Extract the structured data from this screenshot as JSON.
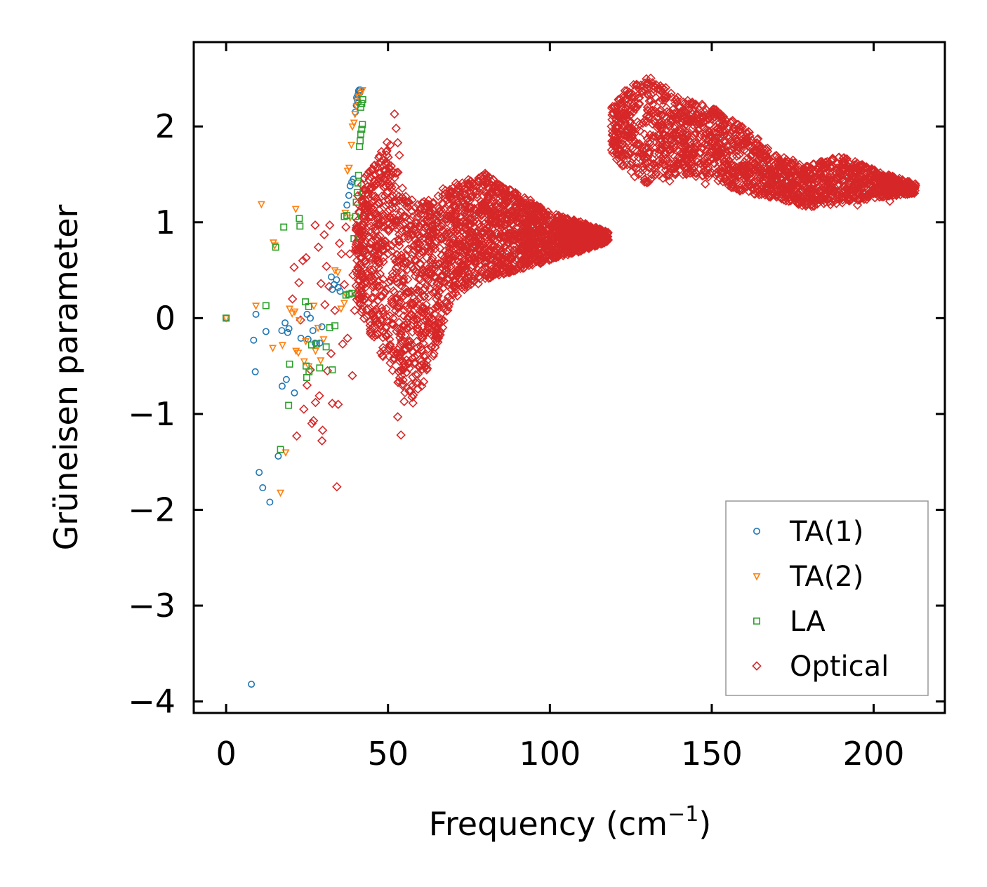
{
  "chart_data": {
    "type": "scatter",
    "title": "",
    "xlabel": "Frequency (cm",
    "xlabel_sup": "−1",
    "xlabel_close": ")",
    "ylabel": "Grüneisen parameter",
    "xlim": [
      -10,
      222
    ],
    "ylim": [
      -4.12,
      2.88
    ],
    "xticks": [
      0,
      50,
      100,
      150,
      200
    ],
    "xtick_labels": [
      "0",
      "50",
      "100",
      "150",
      "200"
    ],
    "yticks": [
      -4,
      -3,
      -2,
      -1,
      0,
      1,
      2
    ],
    "ytick_labels": [
      "−4",
      "−3",
      "−2",
      "−1",
      "0",
      "1",
      "2"
    ],
    "legend_position": "lower-right",
    "series": [
      {
        "name": "TA(1)",
        "marker": "circle",
        "color": "#1f77b4",
        "points": [
          [
            0,
            0
          ],
          [
            7.8,
            -3.82
          ],
          [
            8.5,
            -0.23
          ],
          [
            9.2,
            0.04
          ],
          [
            9.0,
            -0.56
          ],
          [
            10.2,
            -1.61
          ],
          [
            11.3,
            -1.77
          ],
          [
            12.3,
            -0.14
          ],
          [
            13.5,
            -1.92
          ],
          [
            16.1,
            -1.44
          ],
          [
            17.2,
            -0.13
          ],
          [
            17.3,
            -0.71
          ],
          [
            18.2,
            -0.05
          ],
          [
            18.6,
            -0.64
          ],
          [
            19.0,
            -0.15
          ],
          [
            19.4,
            -0.11
          ],
          [
            21.1,
            -0.78
          ],
          [
            23.1,
            -0.21
          ],
          [
            25.0,
            0.04
          ],
          [
            25.3,
            -0.22
          ],
          [
            26.0,
            0.0
          ],
          [
            26.8,
            -0.13
          ],
          [
            27.5,
            -0.26
          ],
          [
            28.9,
            -0.26
          ],
          [
            29.6,
            -0.09
          ],
          [
            32.5,
            0.43
          ],
          [
            32.8,
            0.3
          ],
          [
            33.4,
            0.35
          ],
          [
            34.1,
            0.4
          ],
          [
            34.6,
            0.32
          ],
          [
            35.2,
            0.28
          ],
          [
            37.3,
            1.18
          ],
          [
            37.9,
            1.28
          ],
          [
            38.3,
            1.38
          ],
          [
            38.8,
            1.42
          ],
          [
            39.3,
            1.45
          ],
          [
            39.9,
            2.15
          ],
          [
            40.2,
            2.22
          ],
          [
            40.5,
            2.28
          ],
          [
            40.7,
            2.33
          ],
          [
            40.9,
            2.37
          ],
          [
            41.1,
            2.38
          ],
          [
            41.3,
            2.35
          ],
          [
            41.5,
            2.38
          ],
          [
            40.3,
            2.3
          ],
          [
            40.8,
            2.25
          ]
        ]
      },
      {
        "name": "TA(2)",
        "marker": "triangle-down",
        "color": "#ff7f0e",
        "points": [
          [
            0,
            0
          ],
          [
            9.2,
            0.13
          ],
          [
            10.9,
            1.19
          ],
          [
            14.4,
            -0.31
          ],
          [
            14.6,
            0.79
          ],
          [
            15.0,
            0.76
          ],
          [
            16.8,
            -1.82
          ],
          [
            17.4,
            -0.28
          ],
          [
            18.4,
            -1.4
          ],
          [
            19.6,
            0.1
          ],
          [
            20.4,
            0.05
          ],
          [
            21.2,
            0.07
          ],
          [
            21.6,
            -0.34
          ],
          [
            21.5,
            1.14
          ],
          [
            22.3,
            -0.36
          ],
          [
            22.6,
            -0.02
          ],
          [
            24.1,
            -0.45
          ],
          [
            24.6,
            -0.24
          ],
          [
            25.5,
            -0.5
          ],
          [
            27.1,
            0.13
          ],
          [
            27.6,
            -0.34
          ],
          [
            28.4,
            -0.1
          ],
          [
            29.2,
            -0.44
          ],
          [
            30.1,
            -0.22
          ],
          [
            33.6,
            0.5
          ],
          [
            34.5,
            0.48
          ],
          [
            35.5,
            0.1
          ],
          [
            36.5,
            0.16
          ],
          [
            37.5,
            1.54
          ],
          [
            38.0,
            1.57
          ],
          [
            38.7,
            1.81
          ],
          [
            39.0,
            2.0
          ],
          [
            39.5,
            2.04
          ],
          [
            39.8,
            2.13
          ],
          [
            40.3,
            2.21
          ],
          [
            40.6,
            2.26
          ],
          [
            41.0,
            2.31
          ],
          [
            41.6,
            2.35
          ],
          [
            42.1,
            2.38
          ],
          [
            38.3,
            1.05
          ],
          [
            37.0,
            0.25
          ],
          [
            36.8,
            1.1
          ]
        ]
      },
      {
        "name": "LA",
        "marker": "square",
        "color": "#2ca02c",
        "points": [
          [
            0,
            0
          ],
          [
            12.3,
            0.13
          ],
          [
            15.3,
            0.74
          ],
          [
            16.8,
            -1.37
          ],
          [
            17.8,
            0.95
          ],
          [
            19.3,
            -0.91
          ],
          [
            19.6,
            -0.48
          ],
          [
            22.6,
            1.04
          ],
          [
            22.8,
            0.96
          ],
          [
            24.5,
            0.17
          ],
          [
            24.7,
            -0.5
          ],
          [
            24.9,
            -0.62
          ],
          [
            25.5,
            0.12
          ],
          [
            25.6,
            -0.56
          ],
          [
            26.4,
            -0.28
          ],
          [
            27.9,
            -0.27
          ],
          [
            28.9,
            -0.52
          ],
          [
            30.9,
            -0.3
          ],
          [
            32.0,
            -0.1
          ],
          [
            32.8,
            -0.54
          ],
          [
            33.6,
            -0.08
          ],
          [
            36.5,
            1.06
          ],
          [
            37.0,
            0.24
          ],
          [
            37.3,
            1.07
          ],
          [
            38.0,
            0.25
          ],
          [
            38.9,
            0.26
          ],
          [
            39.5,
            0.83
          ],
          [
            40.0,
            1.06
          ],
          [
            40.2,
            1.21
          ],
          [
            40.5,
            1.31
          ],
          [
            40.7,
            1.41
          ],
          [
            40.9,
            1.49
          ],
          [
            41.2,
            1.79
          ],
          [
            41.4,
            1.85
          ],
          [
            41.6,
            1.92
          ],
          [
            41.9,
            1.97
          ],
          [
            42.1,
            2.02
          ],
          [
            41.6,
            2.2
          ],
          [
            41.9,
            2.24
          ],
          [
            42.2,
            2.28
          ]
        ]
      },
      {
        "name": "Optical",
        "marker": "diamond",
        "color": "#d62728",
        "clouds": [
          {
            "x_range": [
              40,
              118
            ],
            "upper": [
              [
                40,
                1.3
              ],
              [
                45,
                1.6
              ],
              [
                50,
                1.9
              ],
              [
                55,
                1.3
              ],
              [
                60,
                1.2
              ],
              [
                70,
                1.4
              ],
              [
                80,
                1.5
              ],
              [
                90,
                1.3
              ],
              [
                100,
                1.1
              ],
              [
                110,
                1.0
              ],
              [
                118,
                0.9
              ]
            ],
            "lower": [
              [
                40,
                0.2
              ],
              [
                45,
                -0.2
              ],
              [
                50,
                -0.5
              ],
              [
                55,
                -0.8
              ],
              [
                58,
                -0.9
              ],
              [
                62,
                -0.6
              ],
              [
                65,
                -0.3
              ],
              [
                70,
                0.2
              ],
              [
                80,
                0.4
              ],
              [
                90,
                0.5
              ],
              [
                100,
                0.6
              ],
              [
                110,
                0.7
              ],
              [
                118,
                0.8
              ]
            ],
            "count": 2600
          },
          {
            "x_range": [
              119,
              213
            ],
            "upper": [
              [
                119,
                2.2
              ],
              [
                125,
                2.45
              ],
              [
                130,
                2.55
              ],
              [
                140,
                2.3
              ],
              [
                150,
                2.2
              ],
              [
                160,
                2.0
              ],
              [
                170,
                1.7
              ],
              [
                180,
                1.6
              ],
              [
                190,
                1.7
              ],
              [
                200,
                1.55
              ],
              [
                213,
                1.4
              ]
            ],
            "lower": [
              [
                119,
                1.7
              ],
              [
                125,
                1.5
              ],
              [
                130,
                1.4
              ],
              [
                140,
                1.5
              ],
              [
                150,
                1.45
              ],
              [
                160,
                1.3
              ],
              [
                170,
                1.25
              ],
              [
                180,
                1.15
              ],
              [
                190,
                1.2
              ],
              [
                200,
                1.25
              ],
              [
                213,
                1.3
              ]
            ],
            "count": 1900
          }
        ],
        "points": [
          [
            20.5,
            0.2
          ],
          [
            21.0,
            0.53
          ],
          [
            21.8,
            -1.23
          ],
          [
            22.5,
            0.37
          ],
          [
            23.0,
            -0.02
          ],
          [
            23.7,
            0.6
          ],
          [
            24.0,
            -0.95
          ],
          [
            24.7,
            0.63
          ],
          [
            25.0,
            -0.7
          ],
          [
            26.0,
            -0.54
          ],
          [
            26.5,
            -1.1
          ],
          [
            27.0,
            -1.07
          ],
          [
            27.5,
            0.97
          ],
          [
            27.6,
            -0.88
          ],
          [
            28.5,
            0.74
          ],
          [
            28.8,
            -0.81
          ],
          [
            29.3,
            0.36
          ],
          [
            29.6,
            -1.28
          ],
          [
            29.8,
            -1.17
          ],
          [
            30.3,
            0.87
          ],
          [
            30.5,
            0.14
          ],
          [
            31.0,
            0.54
          ],
          [
            31.3,
            -0.55
          ],
          [
            31.8,
            0.33
          ],
          [
            32.0,
            0.97
          ],
          [
            32.4,
            -0.37
          ],
          [
            32.8,
            -0.89
          ],
          [
            33.6,
            0.08
          ],
          [
            34.2,
            -1.76
          ],
          [
            34.6,
            -0.9
          ],
          [
            35.0,
            0.78
          ],
          [
            35.6,
            0.67
          ],
          [
            36.0,
            -0.27
          ],
          [
            36.5,
            0.35
          ],
          [
            37.0,
            0.95
          ],
          [
            37.5,
            -0.21
          ],
          [
            38.2,
            0.67
          ],
          [
            39.0,
            -0.6
          ],
          [
            39.2,
            0.45
          ],
          [
            39.7,
            0.08
          ],
          [
            52.0,
            2.13
          ],
          [
            52.5,
            1.98
          ],
          [
            53.0,
            1.83
          ],
          [
            53.5,
            1.7
          ],
          [
            53.0,
            -1.03
          ],
          [
            54.0,
            -1.22
          ],
          [
            55.0,
            -0.87
          ],
          [
            56.5,
            -0.76
          ],
          [
            67.0,
            1.35
          ],
          [
            72.0,
            1.38
          ],
          [
            80.0,
            1.51
          ],
          [
            78.0,
            1.46
          ],
          [
            85.0,
            1.1
          ],
          [
            94.0,
            1.23
          ],
          [
            137.0,
            1.43
          ],
          [
            148.0,
            1.4
          ],
          [
            163.0,
            1.3
          ],
          [
            195.0,
            1.18
          ],
          [
            205.0,
            1.22
          ]
        ]
      }
    ]
  }
}
